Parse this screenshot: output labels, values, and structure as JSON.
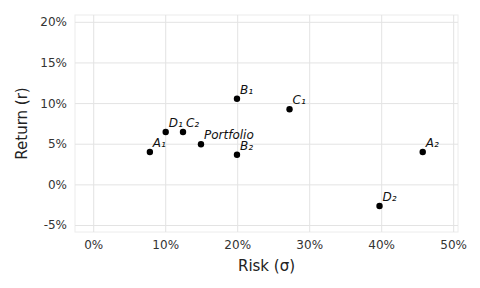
{
  "chart_data": {
    "type": "scatter",
    "x_label": "Risk (σ)",
    "y_label": "Return (r)",
    "labels": [
      "A₁",
      "D₁",
      "C₂",
      "Portfolio",
      "B₁",
      "B₂",
      "C₁",
      "A₂",
      "D₂"
    ],
    "x": [
      7.8,
      10.0,
      12.4,
      14.9,
      19.9,
      19.9,
      27.2,
      45.7,
      39.7
    ],
    "values": [
      4.05,
      6.5,
      6.5,
      5.0,
      10.6,
      3.7,
      9.3,
      4.05,
      -2.6
    ],
    "color": "#000000",
    "marker": "circle",
    "xlim": [
      -2.6,
      50.6
    ],
    "ylim": [
      -5.8,
      20.9
    ],
    "xticks": [
      {
        "value": 0,
        "label": "0%"
      },
      {
        "value": 10,
        "label": "10%"
      },
      {
        "value": 20,
        "label": "20%"
      },
      {
        "value": 30,
        "label": "30%"
      },
      {
        "value": 40,
        "label": "40%"
      },
      {
        "value": 50,
        "label": "50%"
      }
    ],
    "yticks": [
      {
        "value": -5,
        "label": "-5%"
      },
      {
        "value": 0,
        "label": "0%"
      },
      {
        "value": 5,
        "label": "5%"
      },
      {
        "value": 10,
        "label": "10%"
      },
      {
        "value": 15,
        "label": "15%"
      },
      {
        "value": 20,
        "label": "20%"
      }
    ],
    "grid": true
  }
}
